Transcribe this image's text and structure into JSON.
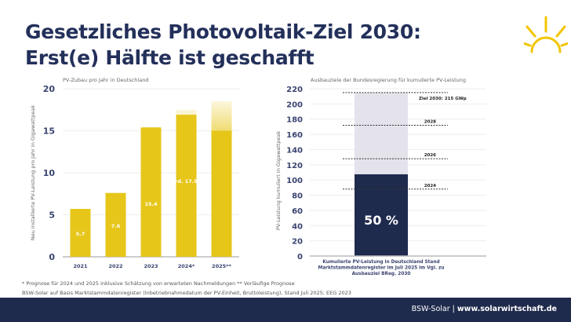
{
  "title_line1": "Gesetzliches Photovoltaik-Ziel 2030:",
  "title_line2": "Erst(e) Hälfte ist geschafft",
  "colors": {
    "navy": "#1f2b4d",
    "yellow": "#e6c619",
    "light": "#e4e3ec",
    "title": "#23305a"
  },
  "chart_data": [
    {
      "type": "bar",
      "title": "PV-Zubau pro Jahr in Deutschland",
      "ylabel": "Neu installierte PV-Leistung pro Jahr in Gigawattpeak",
      "xlabel": "",
      "categories": [
        "2021",
        "2022",
        "2023",
        "2024*",
        "2025**"
      ],
      "values": [
        5.7,
        7.6,
        15.4,
        17.5,
        18.5
      ],
      "data_labels": [
        "5.7",
        "7.6",
        "15.4",
        "rd. 17.5",
        ""
      ],
      "ylim": [
        0,
        20
      ],
      "yticks": [
        "0",
        "5",
        "10",
        "15",
        "20"
      ],
      "grid": true
    },
    {
      "type": "bar",
      "title": "Ausbauziele der Bundesregierung für kumulierte PV-Leistung",
      "ylabel": "PV-Leistung kumuliert in Gigawattpeak",
      "categories": [
        "Kumulierte PV-Leistung in Deutschland Stand Marktstammdatenregister im Juli 2025 im Vgl. zu Ausbauziel BReg. 2030"
      ],
      "category_lines": [
        "Kumulierte PV-Leistung in Deutschland Stand",
        "Marktstammdatenregister im Juli 2025 im Vgl. zu",
        "Ausbauziel BReg. 2030"
      ],
      "values": [
        107.5
      ],
      "target": 215,
      "data_label": "50 %",
      "ylim": [
        0,
        220
      ],
      "yticks": [
        "0",
        "20",
        "40",
        "60",
        "80",
        "100",
        "120",
        "140",
        "160",
        "180",
        "200",
        "220"
      ],
      "reference_lines": [
        {
          "label": "Ziel 2030: 215 GWp",
          "value": 215
        },
        {
          "label": "2028",
          "value": 172
        },
        {
          "label": "2026",
          "value": 128
        },
        {
          "label": "2024",
          "value": 88
        }
      ],
      "grid": true
    }
  ],
  "footnote1": "* Prognose für 2024 und 2025 inklusive Schätzung von erwarteten Nachmeldungen  ** Vorläufige Prognose",
  "footnote2": "BSW-Solar auf Basis Marktstammdatenregister (Inbetriebnahmedatum der PV-Einheit, Bruttoleistung), Stand Juli 2025; EEG 2023",
  "footer": {
    "org": "BSW-Solar",
    "url": "www.solarwirtschaft.de"
  }
}
